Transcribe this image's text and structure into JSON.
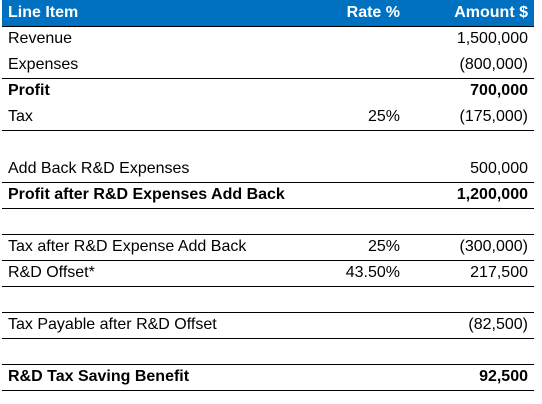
{
  "table": {
    "headers": {
      "line_item": "Line Item",
      "rate": "Rate %",
      "amount": "Amount $"
    },
    "rows": [
      {
        "label": "Revenue",
        "rate": "",
        "amount": "1,500,000"
      },
      {
        "label": "Expenses",
        "rate": "",
        "amount": "(800,000)"
      },
      {
        "label": "Profit",
        "rate": "",
        "amount": "700,000"
      },
      {
        "label": "Tax",
        "rate": "25%",
        "amount": "(175,000)"
      },
      {
        "label": "",
        "rate": "",
        "amount": ""
      },
      {
        "label": "Add Back R&D Expenses",
        "rate": "",
        "amount": "500,000"
      },
      {
        "label": "Profit after R&D Expenses Add Back",
        "rate": "",
        "amount": "1,200,000"
      },
      {
        "label": "",
        "rate": "",
        "amount": ""
      },
      {
        "label": "Tax after R&D Expense Add Back",
        "rate": "25%",
        "amount": "(300,000)"
      },
      {
        "label": "R&D Offset*",
        "rate": "43.50%",
        "amount": "217,500"
      },
      {
        "label": "",
        "rate": "",
        "amount": ""
      },
      {
        "label": "Tax Payable after R&D Offset",
        "rate": "",
        "amount": "(82,500)"
      },
      {
        "label": "",
        "rate": "",
        "amount": ""
      },
      {
        "label": "R&D Tax Saving Benefit",
        "rate": "",
        "amount": "92,500"
      }
    ]
  },
  "colors": {
    "header_background": "#0070c0",
    "header_text": "#ffffff"
  }
}
